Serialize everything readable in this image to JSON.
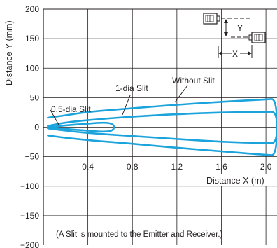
{
  "chart_data": {
    "type": "line",
    "xlabel": "Distance X (m)",
    "ylabel": "Distance Y (mm)",
    "xlim": [
      0,
      2.1
    ],
    "ylim": [
      -200,
      200
    ],
    "x_ticks": [
      0.4,
      0.8,
      1.2,
      1.6,
      2.0
    ],
    "x_tick_labels": [
      "0.4",
      "0.8",
      "1.2",
      "1.6",
      "2.0"
    ],
    "y_ticks": [
      200,
      150,
      100,
      50,
      0,
      -50,
      -100,
      -150,
      -200
    ],
    "y_tick_labels": [
      "200",
      "150",
      "100",
      "50",
      "0",
      "−50",
      "−100",
      "−150",
      "−200"
    ],
    "grid": true,
    "line_color": "#1ba3dc",
    "series": [
      {
        "name": "0.5-dia Slit",
        "x": [
          0.04,
          0.2,
          0.4,
          0.55,
          0.62,
          0.64,
          0.62,
          0.55,
          0.4,
          0.2,
          0.04
        ],
        "y": [
          0,
          3,
          6,
          8,
          6,
          0,
          -6,
          -8,
          -6,
          -3,
          0
        ]
      },
      {
        "name": "1-dia Slit",
        "x": [
          0.04,
          0.2,
          0.4,
          0.8,
          1.2,
          1.6,
          2.0,
          2.1,
          2.1,
          2.0,
          1.6,
          1.2,
          0.8,
          0.4,
          0.2,
          0.04
        ],
        "y": [
          2,
          8,
          12,
          18,
          22,
          25,
          26,
          26,
          -27,
          -27,
          -25,
          -20,
          -15,
          -10,
          -6,
          -2
        ]
      },
      {
        "name": "Without Slit",
        "x": [
          0.04,
          0.2,
          0.4,
          0.8,
          1.2,
          1.6,
          2.0,
          2.1,
          2.1,
          2.0,
          1.6,
          1.2,
          0.8,
          0.4,
          0.2,
          0.04
        ],
        "y": [
          16,
          20,
          26,
          32,
          38,
          43,
          47,
          48,
          -48,
          -47,
          -41,
          -35,
          -28,
          -22,
          -18,
          -14
        ]
      }
    ],
    "annotations": {
      "half_slit": "0.5-dia Slit",
      "one_slit": "1-dia Slit",
      "without_slit": "Without Slit",
      "note": "(A Slit is mounted to the Emitter and Receiver.)"
    },
    "inset": {
      "y_label": "Y",
      "x_label": "X"
    }
  }
}
